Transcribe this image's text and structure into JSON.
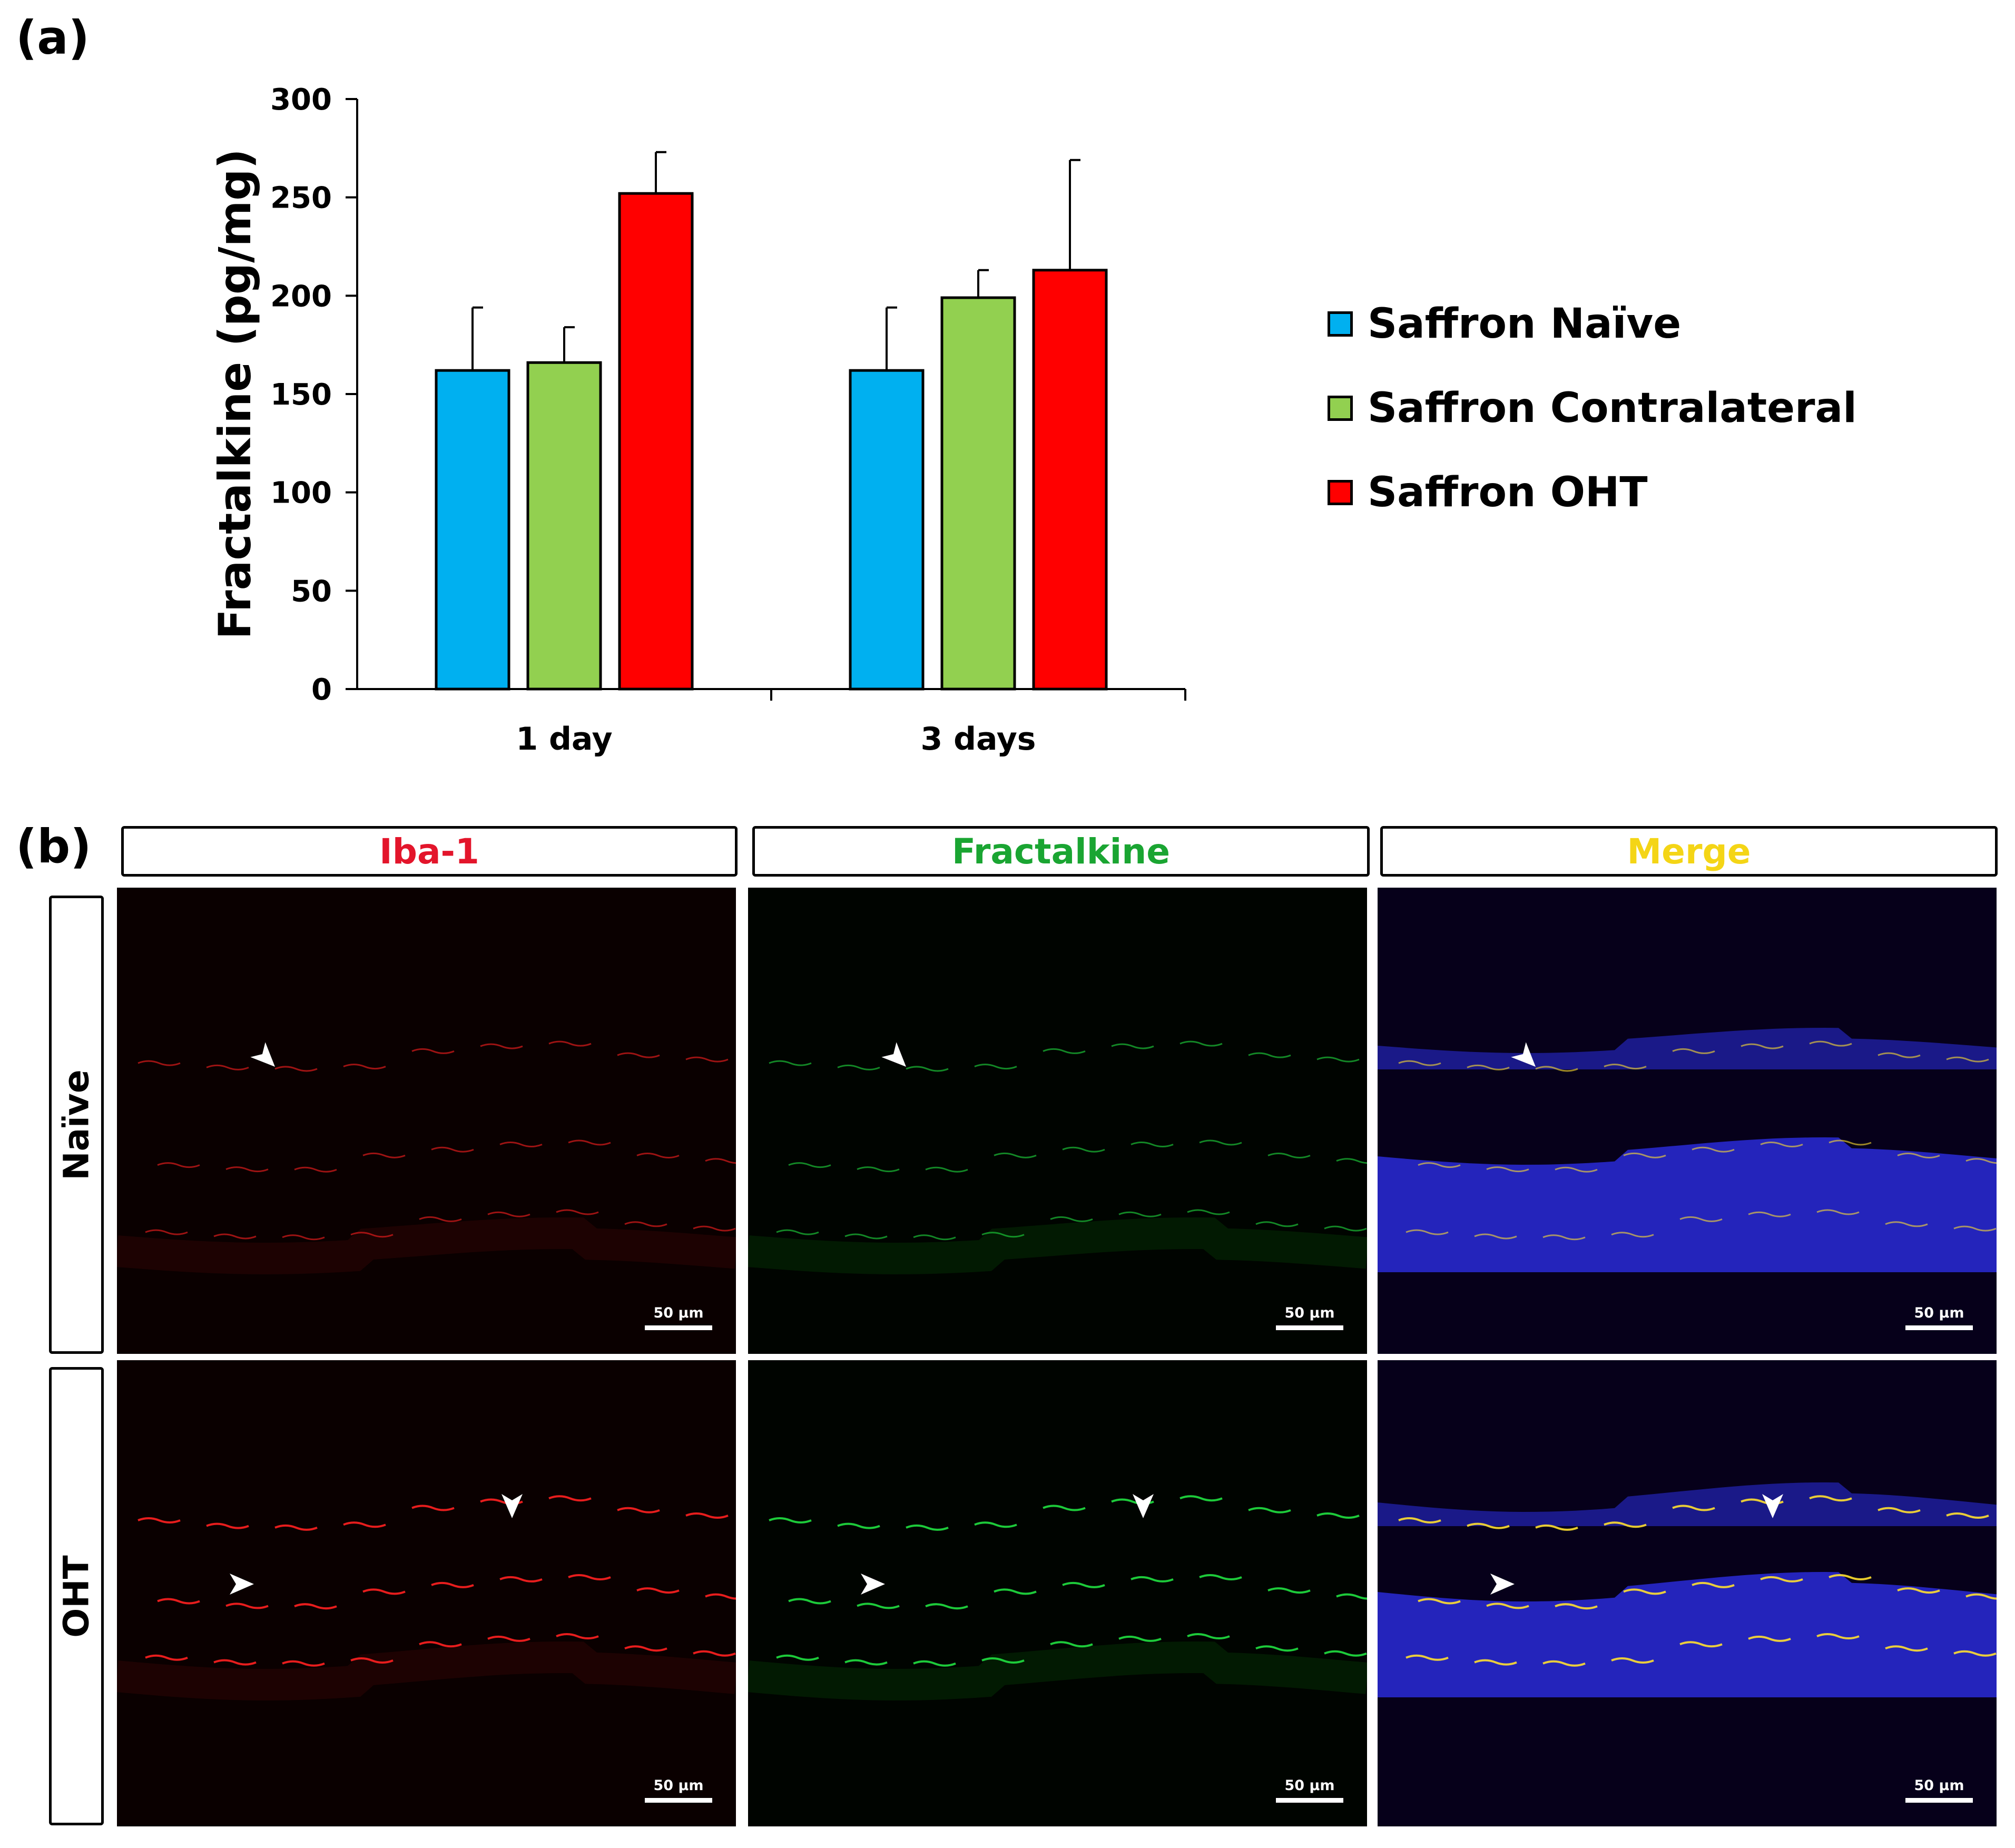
{
  "panels": {
    "a_label": "(a)",
    "b_label": "(b)"
  },
  "chart_data": {
    "type": "bar",
    "categories": [
      "1 day",
      "3 days"
    ],
    "series": [
      {
        "name": "Saffron Naïve",
        "color": "#00b0f0",
        "values": [
          162,
          162
        ],
        "errors": [
          32,
          32
        ]
      },
      {
        "name": "Saffron Contralateral",
        "color": "#92d050",
        "values": [
          166,
          199
        ],
        "errors": [
          18,
          14
        ]
      },
      {
        "name": "Saffron OHT",
        "color": "#ff0000",
        "values": [
          252,
          213
        ],
        "errors": [
          21,
          56
        ]
      }
    ],
    "ylabel": "Fractalkine (pg/mg)",
    "xlabel": "",
    "ylim": [
      0,
      300
    ],
    "yticks": [
      0,
      50,
      100,
      150,
      200,
      250,
      300
    ],
    "error_bars": "positive",
    "legend_position": "right",
    "grid": false
  },
  "micrographs": {
    "columns": [
      {
        "label": "Iba-1",
        "color": "#e3152b"
      },
      {
        "label": "Fractalkine",
        "color": "#1aa532"
      },
      {
        "label": "Merge",
        "color": "#f4d516"
      }
    ],
    "rows": [
      {
        "label": "Naïve"
      },
      {
        "label": "OHT"
      }
    ],
    "scale_bar_label": "50 µm",
    "arrowhead_icon": "white-arrowhead-icon"
  }
}
